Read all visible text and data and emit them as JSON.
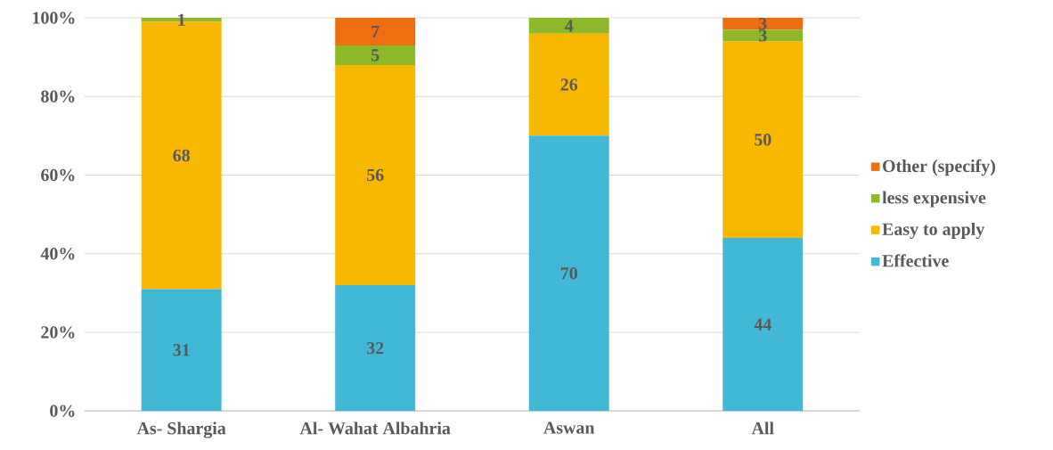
{
  "chart_data": {
    "type": "bar",
    "stacked": true,
    "categories": [
      "As- Shargia",
      "Al- Wahat Albahria",
      "Aswan",
      "All"
    ],
    "series": [
      {
        "name": "Effective",
        "color": "#41b8d5",
        "values": [
          31,
          32,
          70,
          44
        ],
        "value_labels": [
          "31",
          "32",
          "70",
          "44"
        ]
      },
      {
        "name": "Easy to apply",
        "color": "#f9b800",
        "values": [
          68,
          56,
          26,
          50
        ],
        "value_labels": [
          "68",
          "56",
          "26",
          "50"
        ]
      },
      {
        "name": "less expensive",
        "color": "#8db82a",
        "values": [
          1,
          5,
          4,
          3
        ],
        "value_labels": [
          "1",
          "5",
          "4",
          "3"
        ]
      },
      {
        "name": "Other (specify)",
        "color": "#ef6f10",
        "values": [
          0,
          7,
          0,
          3
        ],
        "value_labels": [
          null,
          "7",
          null,
          "3"
        ]
      }
    ],
    "ylim": [
      0,
      100
    ],
    "yticks": [
      {
        "value": 0,
        "label": "0%"
      },
      {
        "value": 20,
        "label": "20%"
      },
      {
        "value": 40,
        "label": "40%"
      },
      {
        "value": 60,
        "label": "60%"
      },
      {
        "value": 80,
        "label": "80%"
      },
      {
        "value": 100,
        "label": "100%"
      }
    ],
    "grid": "y",
    "legend": "right"
  }
}
